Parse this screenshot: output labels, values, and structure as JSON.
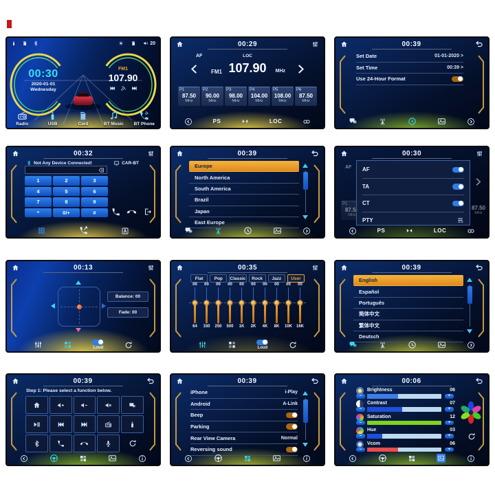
{
  "accent": {
    "cyan": "#3ad8ee",
    "orange": "#f2a12e",
    "blue": "#2f7de8",
    "gold": "#c59a3e",
    "highlight": "#f6b33c"
  },
  "watermark": {
    "color": "#c41818"
  },
  "panels": [
    {
      "name": "home",
      "status": {
        "volume": "20",
        "icons": [
          "usb",
          "sd-card",
          "bluetooth",
          "brightness",
          "sd-card",
          "speaker"
        ]
      },
      "clock": {
        "time": "00:30",
        "date": "2020-01-01",
        "day": "Wednesday"
      },
      "radio": {
        "band": "FM1",
        "freq": "107.90"
      },
      "shortcuts": [
        {
          "icon": "radio",
          "label": "Radio"
        },
        {
          "icon": "usb",
          "label": "USB"
        },
        {
          "icon": "sd-card",
          "label": "Card"
        },
        {
          "icon": "bt-music",
          "label": "BT Music"
        },
        {
          "icon": "bt-phone",
          "label": "BT Phone"
        }
      ]
    },
    {
      "name": "radio",
      "time": "00:29",
      "af": "AF",
      "loc": "LOC",
      "band": "FM1",
      "freq": "107.90",
      "unit": "MHz",
      "presets": [
        {
          "id": "P1",
          "freq": "87.50",
          "unit": "MHz"
        },
        {
          "id": "P2",
          "freq": "90.00",
          "unit": "MHz"
        },
        {
          "id": "P3",
          "freq": "98.00",
          "unit": "MHz"
        },
        {
          "id": "P4",
          "freq": "104.00",
          "unit": "MHz"
        },
        {
          "id": "P5",
          "freq": "108.00",
          "unit": "MHz"
        },
        {
          "id": "P6",
          "freq": "87.50",
          "unit": "MHz"
        }
      ],
      "nav": {
        "ps": "PS",
        "loc": "LOC",
        "icons": [
          "back",
          "preset-scan",
          "rds-link"
        ]
      }
    },
    {
      "name": "clock-settings",
      "time": "00:39",
      "rows": [
        {
          "label": "Set Date",
          "value": "01-01-2020 >"
        },
        {
          "label": "Set Time",
          "value": "00:39 >"
        },
        {
          "label": "Use 24-Hour Format",
          "toggle": "on"
        }
      ],
      "nav": {
        "icons": [
          "language",
          "radio",
          "clock",
          "wallpaper",
          "next"
        ],
        "active": "clock"
      }
    },
    {
      "name": "bt-phone",
      "time": "00:32",
      "status": "Not Any Device Connected!",
      "device": "CAR-BT",
      "keys": [
        "1",
        "2",
        "3",
        "4",
        "5",
        "6",
        "7",
        "8",
        "9",
        "*",
        "0/+",
        "#"
      ],
      "nav": {
        "icons": [
          "dialpad",
          "call-log",
          "contacts"
        ],
        "active": "dialpad"
      }
    },
    {
      "name": "radio-region",
      "time": "00:39",
      "selected": "Europe",
      "items": [
        "Europe",
        "North America",
        "South America",
        "Brazil",
        "Japan",
        "East Europe"
      ],
      "nav": {
        "icons": [
          "language",
          "radio",
          "clock",
          "wallpaper",
          "next"
        ],
        "active": "radio"
      }
    },
    {
      "name": "rds-settings",
      "time": "00:30",
      "rows": [
        {
          "label": "AF",
          "toggle": "on"
        },
        {
          "label": "TA",
          "toggle": "on"
        },
        {
          "label": "CT",
          "toggle": "on"
        },
        {
          "label": "PTY",
          "icon": "pty-list"
        }
      ],
      "background": {
        "af": "AF",
        "preset_id": "P1",
        "preset_freq": "87.50",
        "preset_unit": "MHz",
        "right_freq": "87.50",
        "right_unit": "MHz",
        "ps": "PS",
        "loc": "LOC"
      }
    },
    {
      "name": "balance-fade",
      "time": "00:13",
      "balance": "Balance: 00",
      "fade": "Fade: 00",
      "loud": "Loud",
      "nav": {
        "icons": [
          "equalizer",
          "balance",
          "loud-toggle",
          "reset"
        ],
        "active": "balance"
      }
    },
    {
      "name": "equalizer",
      "time": "00:35",
      "selected": "User",
      "loud": "Loud",
      "presets": [
        "Flat",
        "Pop",
        "Classic",
        "Rock",
        "Jazz",
        "User"
      ],
      "values": [
        "00",
        "00",
        "00",
        "00",
        "00",
        "00",
        "00",
        "00",
        "00",
        "00"
      ],
      "freqs": [
        "64",
        "150",
        "250",
        "500",
        "1K",
        "2K",
        "4K",
        "8K",
        "10K",
        "16K"
      ],
      "nav": {
        "icons": [
          "equalizer",
          "balance",
          "loud-toggle",
          "reset"
        ],
        "active": "equalizer"
      }
    },
    {
      "name": "language",
      "time": "00:39",
      "selected": "English",
      "items": [
        "English",
        "Español",
        "Português",
        "简体中文",
        "繁体中文",
        "Deutsch"
      ],
      "nav": {
        "icons": [
          "language",
          "radio",
          "clock",
          "wallpaper",
          "next"
        ],
        "active": "language"
      }
    },
    {
      "name": "steering-wheel",
      "time": "00:39",
      "instruction": "Step 1: Please select a function below.",
      "functions": [
        "home",
        "volume-up",
        "volume-down",
        "mute",
        "source",
        "play-pause",
        "previous",
        "next",
        "radio",
        "usb",
        "bluetooth",
        "answer",
        "hang-up",
        "voice",
        "reset"
      ],
      "nav": {
        "icons": [
          "back",
          "steering",
          "connect",
          "wallpaper",
          "info"
        ],
        "active": "steering"
      }
    },
    {
      "name": "connect-settings",
      "time": "00:39",
      "rows": [
        {
          "label": "iPhone",
          "value": "i-Play"
        },
        {
          "label": "Android",
          "value": "A-Link"
        },
        {
          "label": "Beep",
          "toggle": "on"
        },
        {
          "label": "Parking",
          "toggle": "on"
        },
        {
          "label": "Rear View Camera",
          "value": "Normal"
        },
        {
          "label": "Reversing sound",
          "toggle": "on"
        }
      ],
      "nav": {
        "icons": [
          "back",
          "steering",
          "connect",
          "wallpaper",
          "info"
        ],
        "active": "connect"
      }
    },
    {
      "name": "display-settings",
      "time": "00:06",
      "rows": [
        {
          "label": "Brightness",
          "value": "06",
          "percent": 42,
          "color": "#3f7de6"
        },
        {
          "label": "Contrast",
          "value": "07",
          "percent": 47,
          "color": "#1f4fd8"
        },
        {
          "label": "Saturation",
          "value": "12",
          "percent": 100,
          "color": "#7ed321"
        },
        {
          "label": "Hue",
          "value": "03",
          "percent": 20,
          "color": "#1f4fd8"
        },
        {
          "label": "Vcom",
          "value": "06",
          "percent": 42,
          "color": "#e84c4c"
        }
      ],
      "nav": {
        "icons": [
          "back",
          "steering",
          "connect",
          "wallpaper",
          "info"
        ],
        "active": "wallpaper"
      }
    }
  ]
}
